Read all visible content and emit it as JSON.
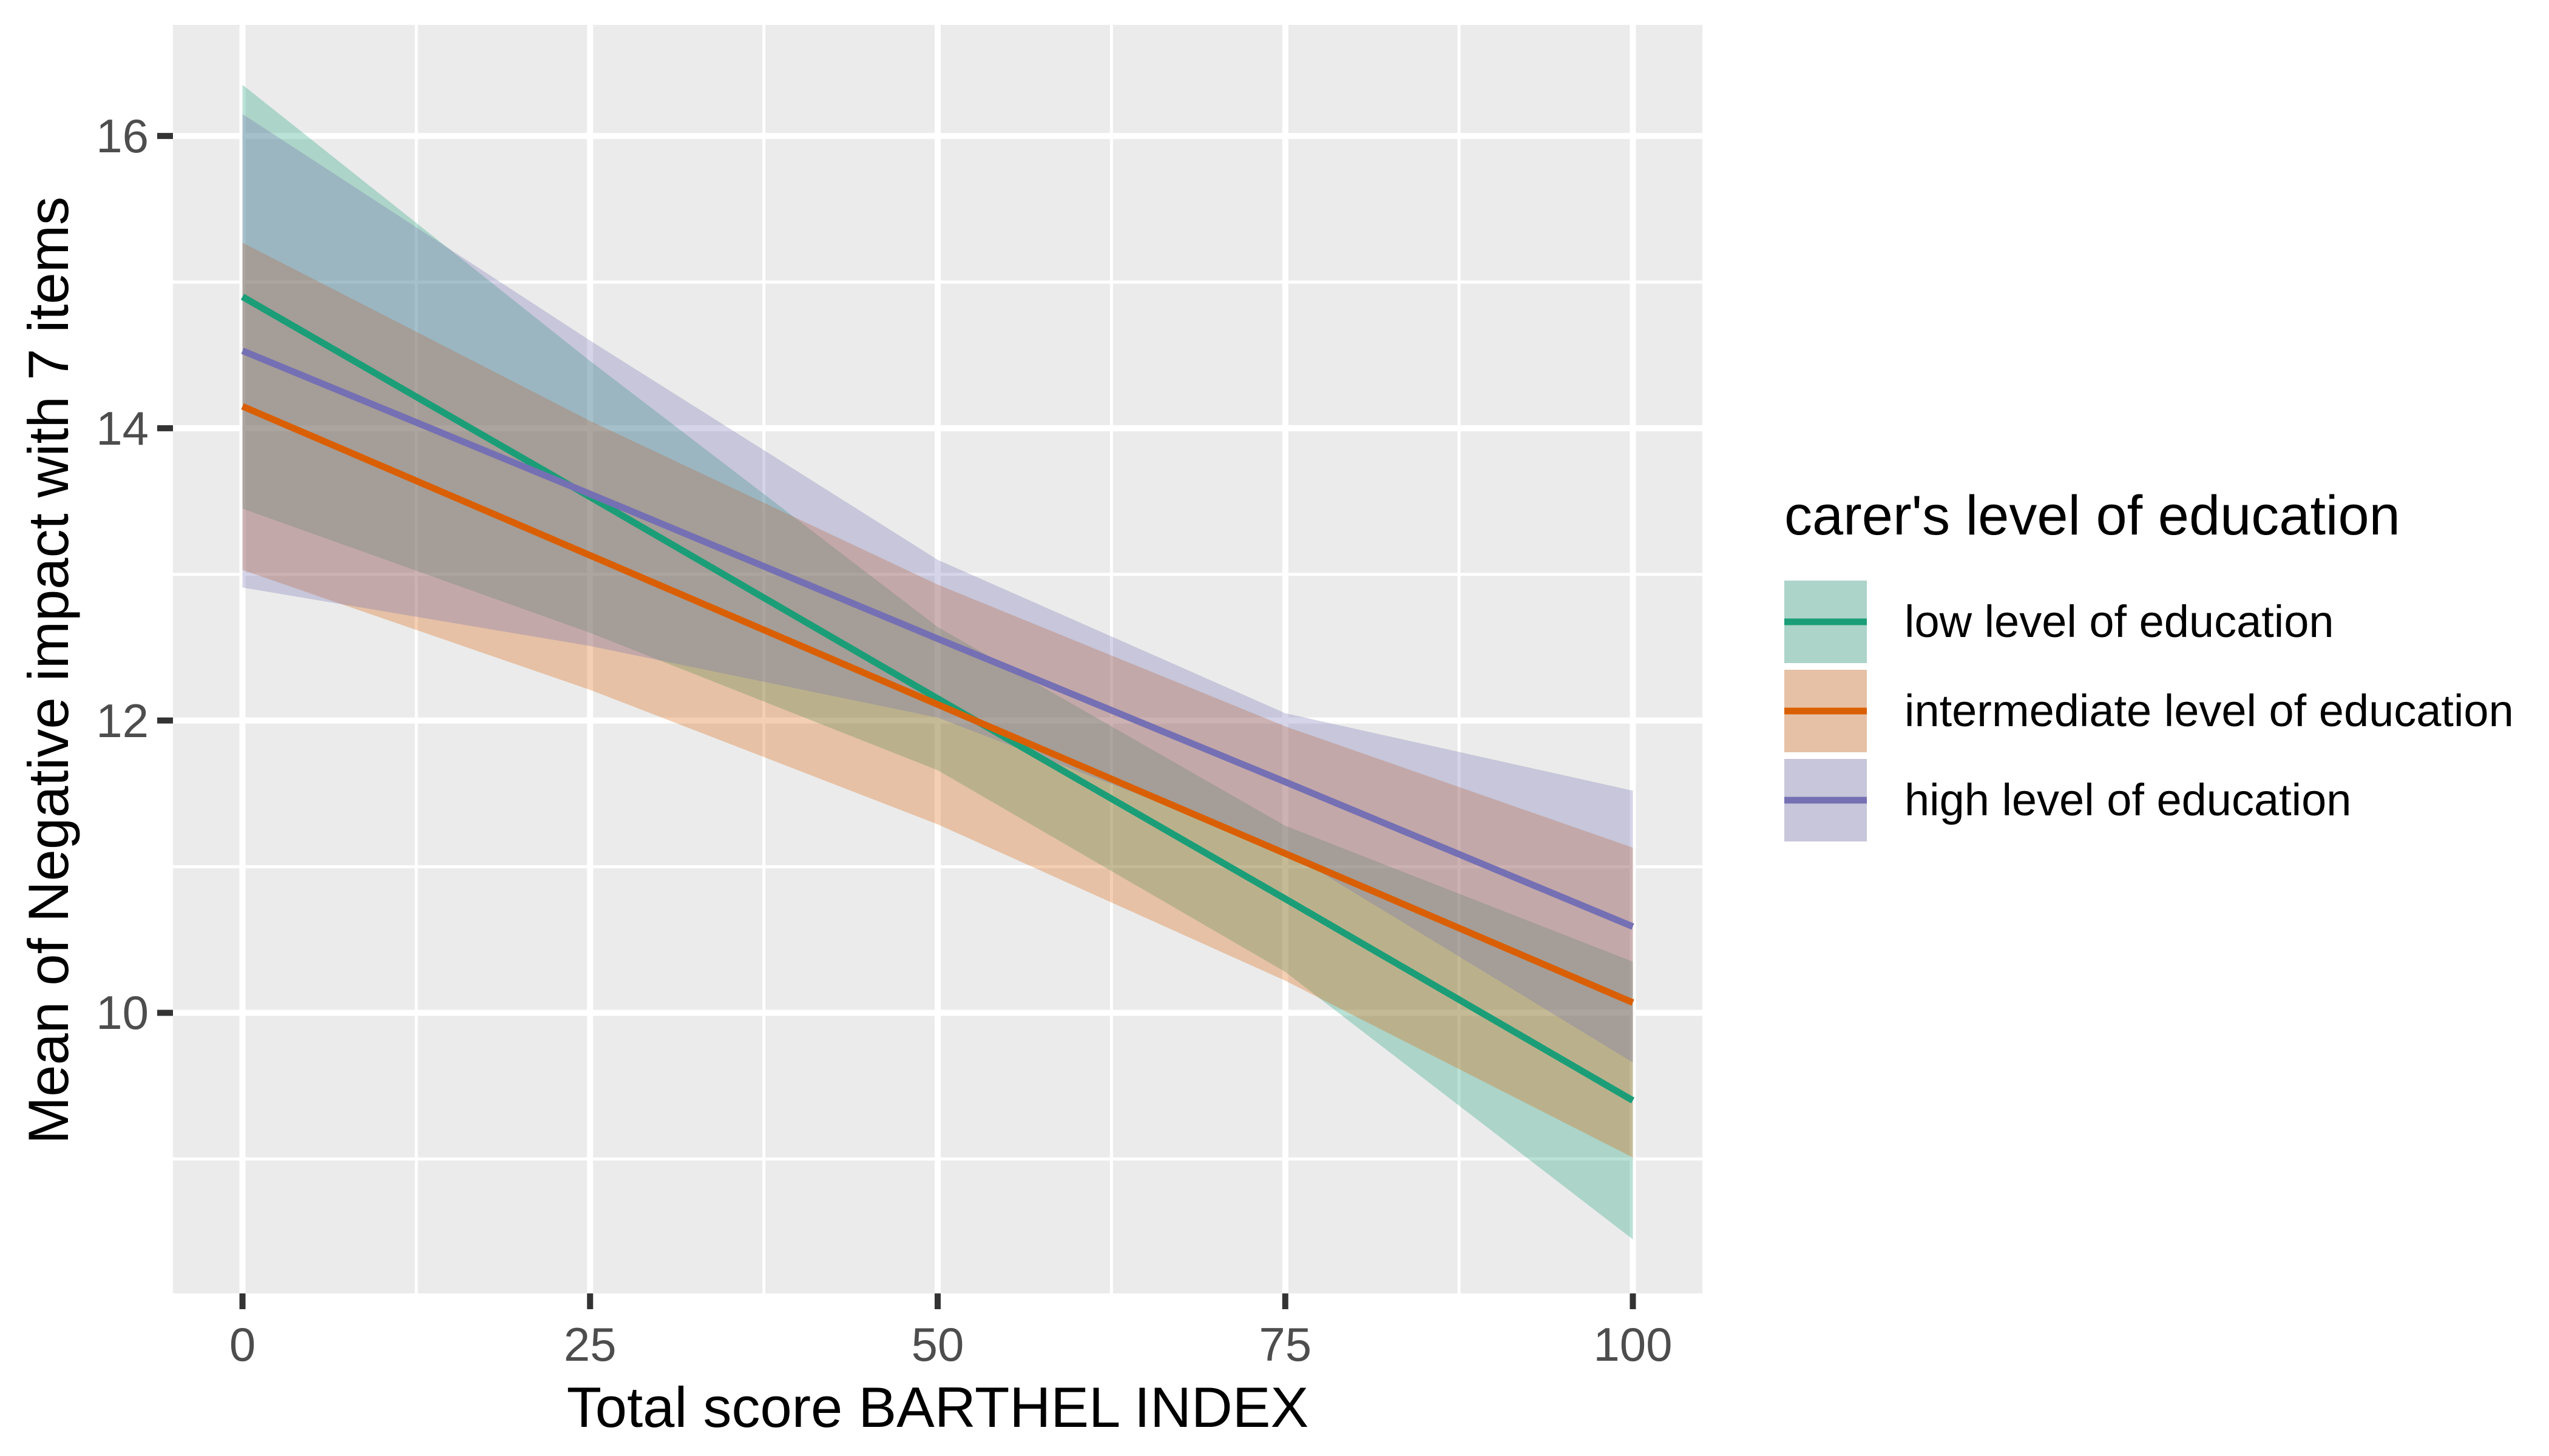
{
  "chart_data": {
    "type": "line",
    "subtype": "linear-fit-with-95ci-ribbons",
    "title": "",
    "xlabel": "Total score BARTHEL INDEX",
    "ylabel": "Mean of Negative impact with 7 items",
    "legend_title": "carer's level of education",
    "legend_position": "right",
    "grid": "major+minor",
    "xlim": [
      -5,
      105
    ],
    "ylim": [
      8.08,
      16.76
    ],
    "x_ticks": [
      0,
      25,
      50,
      75,
      100
    ],
    "y_ticks": [
      16,
      14,
      12,
      10
    ],
    "x_minor": [
      12.5,
      37.5,
      62.5,
      87.5
    ],
    "y_minor": [
      9,
      11,
      13,
      15
    ],
    "x": [
      0,
      25,
      50,
      75,
      100
    ],
    "series": [
      {
        "name": "low level of education",
        "color": "#1B9E77",
        "values": [
          14.9,
          13.53,
          12.15,
          10.78,
          9.4
        ],
        "ci_upper": [
          16.35,
          14.46,
          12.64,
          11.28,
          10.35
        ],
        "ci_lower": [
          13.45,
          12.6,
          11.66,
          10.28,
          8.45
        ]
      },
      {
        "name": "intermediate level of education",
        "color": "#D95F02",
        "values": [
          14.15,
          13.13,
          12.11,
          11.09,
          10.07
        ],
        "ci_upper": [
          15.27,
          14.05,
          12.93,
          11.96,
          11.13
        ],
        "ci_lower": [
          13.03,
          12.21,
          11.29,
          10.22,
          9.01
        ]
      },
      {
        "name": "high level of education",
        "color": "#7570B3",
        "values": [
          14.53,
          13.55,
          12.56,
          11.58,
          10.59
        ],
        "ci_upper": [
          16.15,
          14.6,
          13.1,
          12.05,
          11.52
        ],
        "ci_lower": [
          12.91,
          12.51,
          12.02,
          11.11,
          9.66
        ]
      }
    ],
    "style": {
      "background": "#FFFFFF",
      "panel_bg": "#EBEBEB",
      "grid_color": "#FFFFFF",
      "tick_color": "#333333",
      "tick_label_color": "#4D4D4D",
      "text_color": "#000000",
      "fill_alpha": 0.3,
      "line_width": 11,
      "grid_major_width": 10,
      "grid_minor_width": 5
    }
  }
}
